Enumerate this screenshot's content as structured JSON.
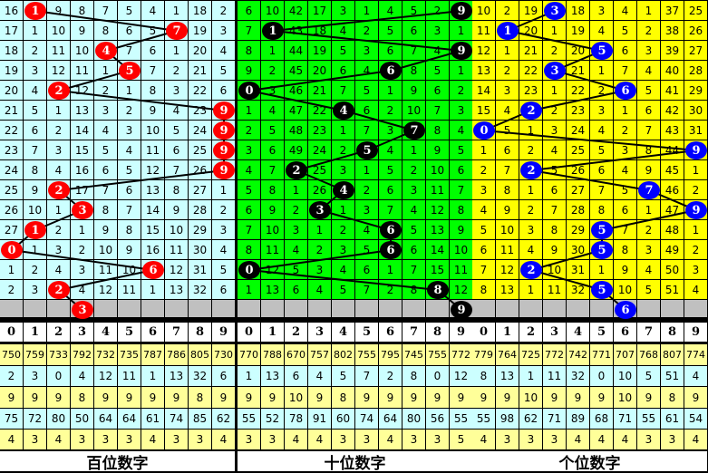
{
  "chart_data": {
    "type": "table",
    "panels": [
      {
        "title": "百位数字",
        "bg": "#ccffff",
        "ball_color": "#ff0000",
        "rows": [
          {
            "values": [
              16,
              1,
              9,
              8,
              7,
              5,
              4,
              1,
              18,
              2
            ],
            "ball": 1
          },
          {
            "values": [
              17,
              1,
              10,
              9,
              8,
              6,
              5,
              7,
              19,
              3
            ],
            "ball": 7
          },
          {
            "values": [
              18,
              2,
              11,
              10,
              4,
              7,
              6,
              1,
              20,
              4
            ],
            "ball": 4
          },
          {
            "values": [
              19,
              3,
              12,
              11,
              1,
              5,
              7,
              2,
              21,
              5
            ],
            "ball": 5
          },
          {
            "values": [
              20,
              4,
              2,
              12,
              2,
              1,
              8,
              3,
              22,
              6
            ],
            "ball": 2
          },
          {
            "values": [
              21,
              5,
              1,
              13,
              3,
              2,
              9,
              4,
              23,
              9
            ],
            "ball": 9
          },
          {
            "values": [
              22,
              6,
              2,
              14,
              4,
              3,
              10,
              5,
              24,
              9
            ],
            "ball": 9
          },
          {
            "values": [
              23,
              7,
              3,
              15,
              5,
              4,
              11,
              6,
              25,
              9
            ],
            "ball": 9
          },
          {
            "values": [
              24,
              8,
              4,
              16,
              6,
              5,
              12,
              7,
              26,
              9
            ],
            "ball": 9
          },
          {
            "values": [
              25,
              9,
              2,
              17,
              7,
              6,
              13,
              8,
              27,
              1
            ],
            "ball": 2
          },
          {
            "values": [
              26,
              10,
              1,
              3,
              8,
              7,
              14,
              9,
              28,
              2
            ],
            "ball": 3
          },
          {
            "values": [
              27,
              1,
              2,
              1,
              9,
              8,
              15,
              10,
              29,
              3
            ],
            "ball": 1
          },
          {
            "values": [
              0,
              1,
              3,
              2,
              10,
              9,
              16,
              11,
              30,
              4
            ],
            "ball": 0
          },
          {
            "values": [
              1,
              2,
              4,
              3,
              11,
              10,
              6,
              12,
              31,
              5
            ],
            "ball": 6
          },
          {
            "values": [
              2,
              3,
              2,
              4,
              12,
              11,
              1,
              13,
              32,
              6
            ],
            "ball": 2
          }
        ],
        "next_ball": 3,
        "stats": [
          [
            750,
            759,
            733,
            792,
            732,
            735,
            787,
            786,
            805,
            730
          ],
          [
            2,
            3,
            0,
            4,
            12,
            11,
            1,
            13,
            32,
            6
          ],
          [
            9,
            9,
            9,
            8,
            9,
            9,
            9,
            9,
            8,
            9
          ],
          [
            75,
            72,
            80,
            50,
            64,
            64,
            61,
            74,
            85,
            62
          ],
          [
            4,
            3,
            4,
            3,
            3,
            3,
            4,
            3,
            3,
            4
          ]
        ]
      },
      {
        "title": "十位数字",
        "bg": "#00ff00",
        "ball_color": "#000000",
        "rows": [
          {
            "values": [
              6,
              10,
              42,
              17,
              3,
              1,
              4,
              5,
              2,
              9
            ],
            "ball": 9
          },
          {
            "values": [
              7,
              1,
              43,
              18,
              4,
              2,
              5,
              6,
              3,
              1
            ],
            "ball": 1
          },
          {
            "values": [
              8,
              1,
              44,
              19,
              5,
              3,
              6,
              7,
              4,
              9
            ],
            "ball": 9
          },
          {
            "values": [
              9,
              2,
              45,
              20,
              6,
              4,
              6,
              8,
              5,
              1
            ],
            "ball": 6
          },
          {
            "values": [
              0,
              3,
              46,
              21,
              7,
              5,
              1,
              9,
              6,
              2
            ],
            "ball": 0
          },
          {
            "values": [
              1,
              4,
              47,
              22,
              4,
              6,
              2,
              10,
              7,
              3
            ],
            "ball": 4
          },
          {
            "values": [
              2,
              5,
              48,
              23,
              1,
              7,
              3,
              7,
              8,
              4
            ],
            "ball": 7
          },
          {
            "values": [
              3,
              6,
              49,
              24,
              2,
              5,
              4,
              1,
              9,
              5
            ],
            "ball": 5
          },
          {
            "values": [
              4,
              7,
              2,
              25,
              3,
              1,
              5,
              2,
              10,
              6
            ],
            "ball": 2
          },
          {
            "values": [
              5,
              8,
              1,
              26,
              4,
              2,
              6,
              3,
              11,
              7
            ],
            "ball": 4
          },
          {
            "values": [
              6,
              9,
              2,
              3,
              1,
              3,
              7,
              4,
              12,
              8
            ],
            "ball": 3
          },
          {
            "values": [
              7,
              10,
              3,
              1,
              2,
              4,
              6,
              5,
              13,
              9
            ],
            "ball": 6
          },
          {
            "values": [
              8,
              11,
              4,
              2,
              3,
              5,
              6,
              6,
              14,
              10
            ],
            "ball": 6
          },
          {
            "values": [
              0,
              12,
              5,
              3,
              4,
              6,
              1,
              7,
              15,
              11
            ],
            "ball": 0
          },
          {
            "values": [
              1,
              13,
              6,
              4,
              5,
              7,
              2,
              8,
              8,
              12
            ],
            "ball": 8
          }
        ],
        "next_ball": 9,
        "stats": [
          [
            770,
            788,
            670,
            757,
            802,
            755,
            795,
            745,
            755,
            772
          ],
          [
            1,
            13,
            6,
            4,
            5,
            7,
            2,
            8,
            0,
            12
          ],
          [
            9,
            9,
            10,
            9,
            8,
            9,
            9,
            9,
            9,
            9
          ],
          [
            55,
            52,
            78,
            91,
            60,
            74,
            64,
            80,
            56,
            55
          ],
          [
            3,
            3,
            4,
            4,
            3,
            3,
            4,
            3,
            3,
            5
          ]
        ]
      },
      {
        "title": "个位数字",
        "bg": "#ffff00",
        "ball_color": "#0000ff",
        "rows": [
          {
            "values": [
              10,
              2,
              19,
              3,
              18,
              3,
              4,
              1,
              37,
              25
            ],
            "ball": 3
          },
          {
            "values": [
              11,
              1,
              20,
              1,
              19,
              4,
              5,
              2,
              38,
              26
            ],
            "ball": 1
          },
          {
            "values": [
              12,
              1,
              21,
              2,
              20,
              5,
              6,
              3,
              39,
              27
            ],
            "ball": 5
          },
          {
            "values": [
              13,
              2,
              22,
              3,
              21,
              1,
              7,
              4,
              40,
              28
            ],
            "ball": 3
          },
          {
            "values": [
              14,
              3,
              23,
              1,
              22,
              2,
              6,
              5,
              41,
              29
            ],
            "ball": 6
          },
          {
            "values": [
              15,
              4,
              2,
              2,
              23,
              3,
              1,
              6,
              42,
              30
            ],
            "ball": 2
          },
          {
            "values": [
              0,
              5,
              1,
              3,
              24,
              4,
              2,
              7,
              43,
              31
            ],
            "ball": 0
          },
          {
            "values": [
              1,
              6,
              2,
              4,
              25,
              5,
              3,
              8,
              44,
              9
            ],
            "ball": 9
          },
          {
            "values": [
              2,
              7,
              2,
              5,
              26,
              6,
              4,
              9,
              45,
              1
            ],
            "ball": 2
          },
          {
            "values": [
              3,
              8,
              1,
              6,
              27,
              7,
              5,
              7,
              46,
              2
            ],
            "ball": 7
          },
          {
            "values": [
              4,
              9,
              2,
              7,
              28,
              8,
              6,
              1,
              47,
              9
            ],
            "ball": 9
          },
          {
            "values": [
              5,
              10,
              3,
              8,
              29,
              5,
              7,
              2,
              48,
              1
            ],
            "ball": 5
          },
          {
            "values": [
              6,
              11,
              4,
              9,
              30,
              5,
              8,
              3,
              49,
              2
            ],
            "ball": 5
          },
          {
            "values": [
              7,
              12,
              2,
              10,
              31,
              1,
              9,
              4,
              50,
              3
            ],
            "ball": 2
          },
          {
            "values": [
              8,
              13,
              1,
              11,
              32,
              5,
              10,
              5,
              51,
              4
            ],
            "ball": 5
          }
        ],
        "next_ball": 6,
        "stats": [
          [
            779,
            764,
            725,
            772,
            742,
            771,
            707,
            768,
            807,
            774
          ],
          [
            8,
            13,
            1,
            11,
            32,
            0,
            10,
            5,
            51,
            4
          ],
          [
            9,
            9,
            10,
            9,
            9,
            9,
            10,
            9,
            8,
            9
          ],
          [
            55,
            98,
            62,
            71,
            89,
            68,
            71,
            55,
            61,
            54
          ],
          [
            4,
            3,
            3,
            3,
            4,
            4,
            4,
            3,
            3,
            4
          ]
        ]
      }
    ],
    "header_digits": [
      "0",
      "1",
      "2",
      "3",
      "4",
      "5",
      "6",
      "7",
      "8",
      "9"
    ],
    "stats_row_colors": [
      "#ffff99",
      "#ccffff",
      "#ffff99",
      "#ccffff",
      "#ffff99"
    ],
    "gray_row_color": "#c0c0c0"
  }
}
